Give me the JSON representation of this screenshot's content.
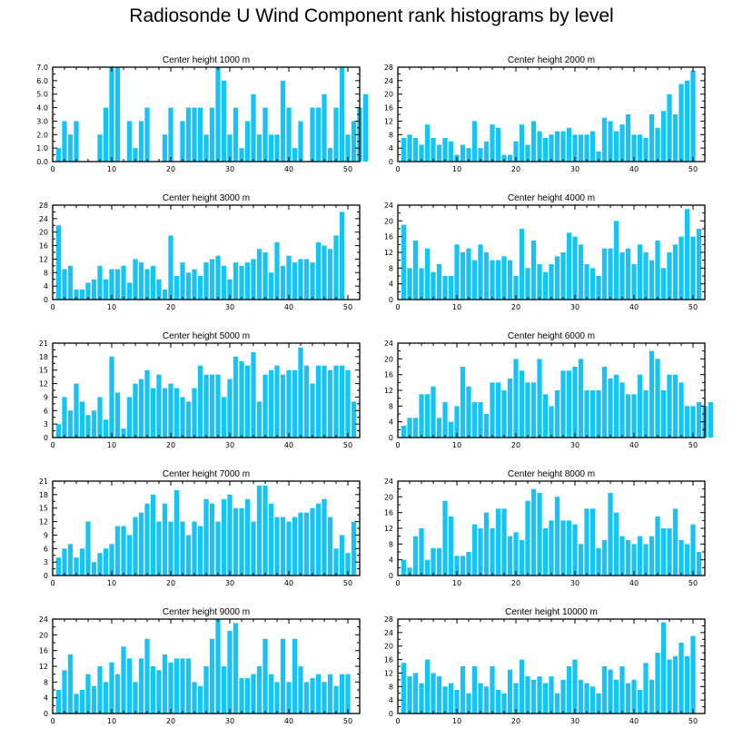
{
  "title": "Radiosonde U Wind Component rank histograms by level",
  "colors": {
    "bar": "#16c3f5",
    "axis": "#000000",
    "background": "#ffffff"
  },
  "chart_data": [
    {
      "type": "bar",
      "title": "Center height 1000 m",
      "xlim": [
        0,
        52
      ],
      "ylim": [
        0,
        7
      ],
      "xticks": [
        0,
        10,
        20,
        30,
        40,
        50
      ],
      "yticks": [
        0,
        1,
        2,
        3,
        4,
        5,
        6,
        7
      ],
      "ytick_labels": [
        "0.0",
        "1.0",
        "2.0",
        "3.0",
        "4.0",
        "5.0",
        "6.0",
        "7.0"
      ],
      "values": [
        1,
        3,
        2,
        3,
        0,
        0,
        0,
        2,
        4,
        7,
        7,
        0,
        3,
        1,
        3,
        4,
        0,
        0,
        2,
        4,
        0,
        3,
        4,
        4,
        4,
        2,
        4,
        7,
        6,
        2,
        4,
        1,
        3,
        5,
        2,
        4,
        2,
        2,
        6,
        4,
        1,
        3,
        0,
        4,
        4,
        5,
        1,
        4,
        7,
        2,
        3,
        4,
        5
      ]
    },
    {
      "type": "bar",
      "title": "Center height 2000 m",
      "xlim": [
        0,
        52
      ],
      "ylim": [
        0,
        28
      ],
      "xticks": [
        0,
        10,
        20,
        30,
        40,
        50
      ],
      "yticks": [
        0,
        4,
        8,
        12,
        16,
        20,
        24,
        28
      ],
      "ytick_labels": [
        "0",
        "4",
        "8",
        "12",
        "16",
        "20",
        "24",
        "28"
      ],
      "values": [
        7,
        8,
        7,
        5,
        11,
        7,
        5,
        7,
        6,
        2,
        5,
        4,
        12,
        4,
        6,
        11,
        10,
        2,
        2,
        6,
        11,
        5,
        12,
        9,
        7,
        8,
        9,
        9,
        10,
        8,
        8,
        8,
        9,
        3,
        13,
        12,
        9,
        11,
        14,
        8,
        8,
        7,
        14,
        10,
        15,
        20,
        14,
        23,
        24,
        27
      ]
    },
    {
      "type": "bar",
      "title": "Center height 3000 m",
      "xlim": [
        0,
        52
      ],
      "ylim": [
        0,
        28
      ],
      "xticks": [
        0,
        10,
        20,
        30,
        40,
        50
      ],
      "yticks": [
        0,
        4,
        8,
        12,
        16,
        20,
        24,
        28
      ],
      "ytick_labels": [
        "0",
        "4",
        "8",
        "12",
        "16",
        "20",
        "24",
        "28"
      ],
      "values": [
        22,
        9,
        10,
        3,
        3,
        5,
        6,
        10,
        6,
        9,
        9,
        10,
        5,
        12,
        11,
        9,
        10,
        6,
        3,
        19,
        7,
        11,
        8,
        9,
        7,
        11,
        12,
        13,
        10,
        6,
        11,
        10,
        11,
        12,
        15,
        14,
        8,
        17,
        10,
        13,
        11,
        12,
        12,
        11,
        17,
        16,
        15,
        19,
        26
      ]
    },
    {
      "type": "bar",
      "title": "Center height 4000 m",
      "xlim": [
        0,
        52
      ],
      "ylim": [
        0,
        24
      ],
      "xticks": [
        0,
        10,
        20,
        30,
        40,
        50
      ],
      "yticks": [
        0,
        4,
        8,
        12,
        16,
        20,
        24
      ],
      "ytick_labels": [
        "0",
        "4",
        "8",
        "12",
        "16",
        "20",
        "24"
      ],
      "values": [
        19,
        8,
        15,
        8,
        13,
        7,
        9,
        6,
        6,
        14,
        12,
        13,
        10,
        14,
        12,
        10,
        10,
        11,
        10,
        6,
        18,
        8,
        15,
        9,
        7,
        9,
        11,
        12,
        17,
        16,
        14,
        9,
        8,
        6,
        13,
        13,
        20,
        12,
        13,
        9,
        14,
        12,
        10,
        15,
        8,
        12,
        14,
        16,
        23,
        16,
        18
      ]
    },
    {
      "type": "bar",
      "title": "Center height 5000 m",
      "xlim": [
        0,
        52
      ],
      "ylim": [
        0,
        21
      ],
      "xticks": [
        0,
        10,
        20,
        30,
        40,
        50
      ],
      "yticks": [
        0,
        3,
        6,
        9,
        12,
        15,
        18,
        21
      ],
      "ytick_labels": [
        "0",
        "3",
        "6",
        "9",
        "12",
        "15",
        "18",
        "21"
      ],
      "values": [
        3,
        9,
        6,
        12,
        8,
        5,
        6,
        9,
        4,
        18,
        10,
        2,
        9,
        12,
        13,
        15,
        11,
        14,
        11,
        12,
        11,
        9,
        8,
        11,
        16,
        14,
        14,
        14,
        9,
        13,
        18,
        17,
        16,
        19,
        8,
        14,
        15,
        16,
        14,
        15,
        15,
        20,
        16,
        12,
        16,
        16,
        15,
        16,
        16,
        15,
        8
      ]
    },
    {
      "type": "bar",
      "title": "Center height 6000 m",
      "xlim": [
        0,
        52
      ],
      "ylim": [
        0,
        24
      ],
      "xticks": [
        0,
        10,
        20,
        30,
        40,
        50
      ],
      "yticks": [
        0,
        4,
        8,
        12,
        16,
        20,
        24
      ],
      "ytick_labels": [
        "0",
        "4",
        "8",
        "12",
        "16",
        "20",
        "24"
      ],
      "values": [
        3,
        5,
        5,
        11,
        11,
        13,
        5,
        9,
        4,
        8,
        18,
        13,
        9,
        9,
        6,
        14,
        14,
        12,
        15,
        20,
        17,
        14,
        14,
        20,
        11,
        8,
        12,
        17,
        17,
        18,
        20,
        12,
        12,
        12,
        18,
        15,
        16,
        14,
        11,
        11,
        16,
        12,
        22,
        20,
        12,
        16,
        16,
        14,
        8,
        8,
        9,
        8,
        9
      ]
    },
    {
      "type": "bar",
      "title": "Center height 7000 m",
      "xlim": [
        0,
        52
      ],
      "ylim": [
        0,
        21
      ],
      "xticks": [
        0,
        10,
        20,
        30,
        40,
        50
      ],
      "yticks": [
        0,
        3,
        6,
        9,
        12,
        15,
        18,
        21
      ],
      "ytick_labels": [
        "0",
        "3",
        "6",
        "9",
        "12",
        "15",
        "18",
        "21"
      ],
      "values": [
        4,
        6,
        7,
        4,
        6,
        12,
        3,
        5,
        6,
        7,
        11,
        11,
        9,
        13,
        14,
        16,
        18,
        12,
        16,
        12,
        19,
        12,
        9,
        12,
        11,
        17,
        16,
        12,
        17,
        18,
        15,
        15,
        17,
        12,
        20,
        20,
        16,
        13,
        13,
        12,
        13,
        14,
        14,
        15,
        16,
        17,
        13,
        6,
        9,
        5,
        12
      ]
    },
    {
      "type": "bar",
      "title": "Center height 8000 m",
      "xlim": [
        0,
        52
      ],
      "ylim": [
        0,
        24
      ],
      "xticks": [
        0,
        10,
        20,
        30,
        40,
        50
      ],
      "yticks": [
        0,
        4,
        8,
        12,
        16,
        20,
        24
      ],
      "ytick_labels": [
        "0",
        "4",
        "8",
        "12",
        "16",
        "20",
        "24"
      ],
      "values": [
        4,
        2,
        10,
        12,
        4,
        7,
        7,
        19,
        15,
        5,
        5,
        6,
        13,
        12,
        16,
        12,
        17,
        17,
        10,
        11,
        9,
        19,
        22,
        21,
        12,
        14,
        20,
        14,
        14,
        13,
        8,
        17,
        17,
        7,
        9,
        21,
        16,
        10,
        9,
        8,
        10,
        8,
        10,
        15,
        12,
        12,
        17,
        9,
        8,
        13,
        6
      ]
    },
    {
      "type": "bar",
      "title": "Center height 9000 m",
      "xlim": [
        0,
        52
      ],
      "ylim": [
        0,
        24
      ],
      "xticks": [
        0,
        10,
        20,
        30,
        40,
        50
      ],
      "yticks": [
        0,
        4,
        8,
        12,
        16,
        20,
        24
      ],
      "ytick_labels": [
        "0",
        "4",
        "8",
        "12",
        "16",
        "20",
        "24"
      ],
      "values": [
        6,
        11,
        15,
        5,
        6,
        10,
        7,
        12,
        8,
        13,
        10,
        17,
        14,
        8,
        14,
        19,
        12,
        11,
        15,
        13,
        14,
        14,
        14,
        8,
        7,
        12,
        19,
        24,
        12,
        21,
        23,
        9,
        9,
        10,
        12,
        19,
        10,
        8,
        19,
        8,
        19,
        12,
        8,
        9,
        10,
        8,
        10,
        7,
        10,
        10
      ]
    },
    {
      "type": "bar",
      "title": "Center height 10000 m",
      "xlim": [
        0,
        52
      ],
      "ylim": [
        0,
        28
      ],
      "xticks": [
        0,
        10,
        20,
        30,
        40,
        50
      ],
      "yticks": [
        0,
        4,
        8,
        12,
        16,
        20,
        24,
        28
      ],
      "ytick_labels": [
        "0",
        "4",
        "8",
        "12",
        "16",
        "20",
        "24",
        "28"
      ],
      "values": [
        15,
        11,
        12,
        9,
        16,
        12,
        11,
        8,
        9,
        7,
        14,
        6,
        14,
        9,
        8,
        14,
        7,
        6,
        13,
        9,
        16,
        11,
        10,
        11,
        9,
        11,
        6,
        10,
        14,
        16,
        10,
        9,
        8,
        6,
        14,
        13,
        10,
        14,
        9,
        10,
        7,
        15,
        10,
        18,
        27,
        16,
        17,
        21,
        17,
        23
      ]
    }
  ]
}
